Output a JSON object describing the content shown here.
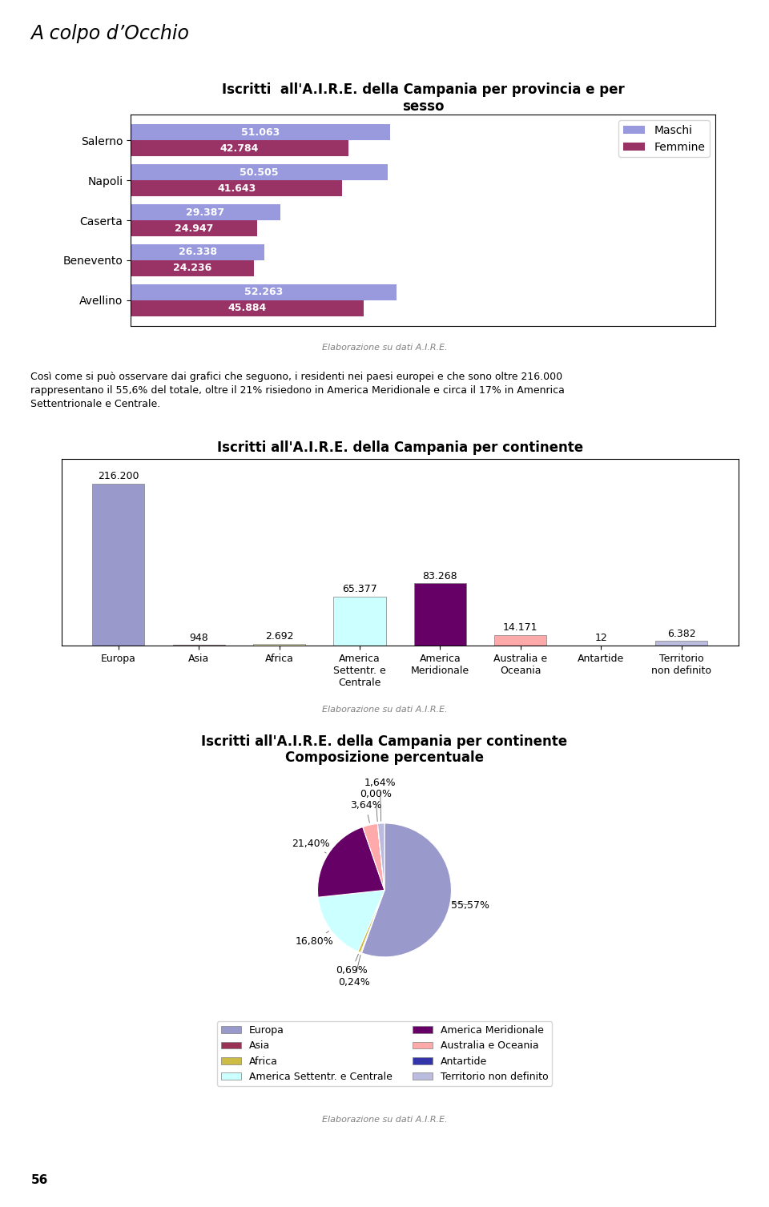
{
  "title": "A colpo d’Occhio",
  "annotations": [
    "Così come si può osservare dai grafici che seguono, i residenti nei paesi europei e che sono oltre 216.000\nrappresentano il 55,6% del totale, oltre il 21% risiedono in America Meridionale e circa il 17% in Amenrica\nSettentrionale e Centrale.",
    "56"
  ],
  "chart_data": [
    {
      "type": "bar",
      "orientation": "horizontal",
      "title": "Iscritti  all'A.I.R.E. della Campania per provincia e per\nsesso",
      "categories": [
        "Salerno",
        "Napoli",
        "Caserta",
        "Benevento",
        "Avellino"
      ],
      "series": [
        {
          "name": "Maschi",
          "color": "#9999dd",
          "values": [
            51063,
            50505,
            29387,
            26338,
            52263
          ],
          "value_labels": [
            "51.063",
            "50.505",
            "29.387",
            "26.338",
            "52.263"
          ]
        },
        {
          "name": "Femmine",
          "color": "#993366",
          "values": [
            42784,
            41643,
            24947,
            24236,
            45884
          ],
          "value_labels": [
            "42.784",
            "41.643",
            "24.947",
            "24.236",
            "45.884"
          ]
        }
      ],
      "xlim": [
        0,
        115000
      ],
      "xticks": [],
      "tick_labels": "y",
      "data_labels": true,
      "legend": "upper right",
      "annotations": [
        "Elaborazione su dati A.I.R.E."
      ]
    },
    {
      "type": "bar",
      "title": "Iscritti all'A.I.R.E. della Campania per continente",
      "categories": [
        "Europa",
        "Asia",
        "Africa",
        "America\nSettentr. e\nCentrale",
        "America\nMeridionale",
        "Australia e\nOceania",
        "Antartide",
        "Territorio\nnon definito"
      ],
      "values": [
        216200,
        948,
        2692,
        65377,
        83268,
        14171,
        12,
        6382
      ],
      "value_labels": [
        "216.200",
        "948",
        "2.692",
        "65.377",
        "83.268",
        "14.171",
        "12",
        "6.382"
      ],
      "colors": [
        "#9999cc",
        "#993355",
        "#ffffcc",
        "#ccffff",
        "#660066",
        "#ffaaaa",
        "#3333aa",
        "#bbbbdd"
      ],
      "ylim": [
        0,
        250000
      ],
      "yticks": [],
      "tick_labels": "x",
      "data_labels": true,
      "annotations": [
        "Elaborazione su dati A.I.R.E."
      ]
    },
    {
      "type": "pie",
      "title": "Iscritti all'A.I.R.E. della Campania per continente\nComposizione percentuale",
      "categories": [
        "Europa",
        "Asia",
        "Africa",
        "America Settentr. e Centrale",
        "America Meridionale",
        "Australia e Oceania",
        "Antartide",
        "Territorio non definito"
      ],
      "values": [
        55.57,
        0.24,
        0.69,
        16.8,
        21.4,
        3.64,
        0.001,
        1.64
      ],
      "value_labels": [
        "55,57%",
        "0,24%",
        "0,69%",
        "16,80%",
        "21,40%",
        "3,64%",
        "0,00%",
        "1,64%"
      ],
      "colors": [
        "#9999cc",
        "#993355",
        "#ccbb44",
        "#ccffff",
        "#660066",
        "#ffaaaa",
        "#3333aa",
        "#bbbbdd"
      ],
      "data_labels": true,
      "legend": "upper center",
      "annotations": [
        "Elaborazione su dati A.I.R.E."
      ]
    }
  ]
}
